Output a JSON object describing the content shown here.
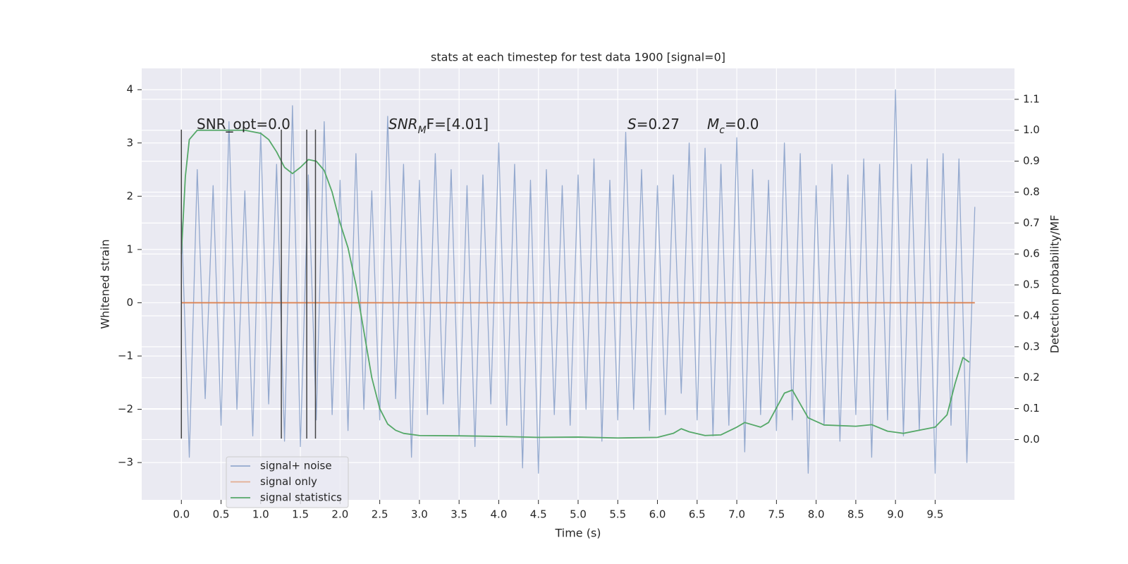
{
  "chart_data": {
    "type": "line",
    "title": "stats at each timestep for test data 1900 [signal=0]",
    "xlabel": "Time (s)",
    "ylabel": "Whitened strain",
    "y2label": "Detection probability/MF",
    "xlim": [
      -0.5,
      10.5
    ],
    "ylim": [
      -3.7,
      4.4
    ],
    "y2lim": [
      -0.195,
      1.2
    ],
    "xticks": [
      {
        "value": 0,
        "label": "0.0"
      },
      {
        "value": 0.5,
        "label": "0.5"
      },
      {
        "value": 1,
        "label": "1.0"
      },
      {
        "value": 1.5,
        "label": "1.5"
      },
      {
        "value": 2,
        "label": "2.0"
      },
      {
        "value": 2.5,
        "label": "2.5"
      },
      {
        "value": 3,
        "label": "3.0"
      },
      {
        "value": 3.5,
        "label": "3.5"
      },
      {
        "value": 4,
        "label": "4.0"
      },
      {
        "value": 4.5,
        "label": "4.5"
      },
      {
        "value": 5,
        "label": "5.0"
      },
      {
        "value": 5.5,
        "label": "5.5"
      },
      {
        "value": 6,
        "label": "6.0"
      },
      {
        "value": 6.5,
        "label": "6.5"
      },
      {
        "value": 7,
        "label": "7.0"
      },
      {
        "value": 7.5,
        "label": "7.5"
      },
      {
        "value": 8,
        "label": "8.0"
      },
      {
        "value": 8.5,
        "label": "8.5"
      },
      {
        "value": 9,
        "label": "9.0"
      },
      {
        "value": 9.5,
        "label": "9.5"
      }
    ],
    "yticks": [
      {
        "value": -3,
        "label": "−3"
      },
      {
        "value": -2,
        "label": "−2"
      },
      {
        "value": -1,
        "label": "−1"
      },
      0,
      1,
      2,
      3,
      4
    ],
    "y2ticks": [
      {
        "value": 0,
        "label": "0.0"
      },
      0.1,
      0.2,
      0.3,
      0.4,
      0.5,
      0.6,
      0.7,
      0.8,
      0.9,
      {
        "value": 1,
        "label": "1.0"
      },
      1.1
    ],
    "grid": true,
    "legend": "lower left",
    "series": [
      {
        "name": "signal+ noise",
        "color": "#4c72b0",
        "x": [
          0.0,
          0.1,
          0.2,
          0.3,
          0.4,
          0.5,
          0.6,
          0.7,
          0.8,
          0.9,
          1.0,
          1.1,
          1.2,
          1.3,
          1.4,
          1.5,
          1.6,
          1.7,
          1.8,
          1.9,
          2.0,
          2.1,
          2.2,
          2.3,
          2.4,
          2.5,
          2.6,
          2.7,
          2.8,
          2.9,
          3.0,
          3.1,
          3.2,
          3.3,
          3.4,
          3.5,
          3.6,
          3.7,
          3.8,
          3.9,
          4.0,
          4.1,
          4.2,
          4.3,
          4.4,
          4.5,
          4.6,
          4.7,
          4.8,
          4.9,
          5.0,
          5.1,
          5.2,
          5.3,
          5.4,
          5.5,
          5.6,
          5.7,
          5.8,
          5.9,
          6.0,
          6.1,
          6.2,
          6.3,
          6.4,
          6.5,
          6.6,
          6.7,
          6.8,
          6.9,
          7.0,
          7.1,
          7.2,
          7.3,
          7.4,
          7.5,
          7.6,
          7.7,
          7.8,
          7.9,
          8.0,
          8.1,
          8.2,
          8.3,
          8.4,
          8.5,
          8.6,
          8.7,
          8.8,
          8.9,
          9.0,
          9.1,
          9.2,
          9.3,
          9.4,
          9.5,
          9.6,
          9.7,
          9.8,
          9.9,
          10.0
        ],
        "values": [
          1.6,
          -2.9,
          2.5,
          -1.8,
          2.2,
          -2.3,
          3.4,
          -2.0,
          2.1,
          -2.5,
          3.2,
          -1.9,
          2.6,
          -2.6,
          3.7,
          -2.7,
          2.4,
          -2.2,
          3.4,
          -2.1,
          2.3,
          -2.4,
          2.8,
          -2.0,
          2.1,
          -2.2,
          3.5,
          -1.8,
          2.6,
          -2.9,
          2.3,
          -2.1,
          2.8,
          -1.9,
          2.5,
          -2.5,
          2.2,
          -2.7,
          2.4,
          -1.9,
          3.0,
          -2.3,
          2.6,
          -3.1,
          2.3,
          -3.2,
          2.5,
          -2.1,
          2.2,
          -2.3,
          2.4,
          -2.0,
          2.7,
          -2.6,
          2.3,
          -2.2,
          3.2,
          -2.0,
          2.5,
          -2.4,
          2.2,
          -2.1,
          2.4,
          -1.7,
          3.0,
          -2.2,
          2.9,
          -2.5,
          2.6,
          -2.3,
          3.1,
          -2.8,
          2.5,
          -2.1,
          2.3,
          -2.4,
          3.0,
          -2.2,
          2.8,
          -3.2,
          2.2,
          -2.3,
          2.6,
          -2.6,
          2.4,
          -2.1,
          2.7,
          -2.9,
          2.6,
          -2.2,
          4.0,
          -2.5,
          2.6,
          -2.4,
          2.7,
          -3.2,
          2.8,
          -2.3,
          2.7,
          -3.0,
          1.8
        ]
      },
      {
        "name": "signal only",
        "color": "#dd8452",
        "x": [
          0.0,
          10.0
        ],
        "values": [
          0,
          0
        ]
      },
      {
        "name": "signal statistics",
        "color": "#55a868",
        "axis": "y2",
        "x": [
          0.0,
          0.05,
          0.1,
          0.2,
          0.4,
          0.8,
          1.0,
          1.1,
          1.2,
          1.3,
          1.4,
          1.5,
          1.6,
          1.7,
          1.8,
          1.9,
          2.0,
          2.1,
          2.2,
          2.3,
          2.4,
          2.5,
          2.6,
          2.7,
          2.8,
          3.0,
          3.5,
          4.0,
          4.5,
          5.0,
          5.5,
          6.0,
          6.2,
          6.3,
          6.4,
          6.6,
          6.8,
          7.0,
          7.1,
          7.3,
          7.4,
          7.6,
          7.7,
          7.9,
          8.1,
          8.5,
          8.7,
          8.9,
          9.1,
          9.3,
          9.5,
          9.65,
          9.75,
          9.85,
          9.93
        ],
        "values": [
          0.6,
          0.85,
          0.97,
          1.0,
          1.0,
          1.0,
          0.99,
          0.97,
          0.93,
          0.88,
          0.86,
          0.88,
          0.905,
          0.9,
          0.87,
          0.8,
          0.7,
          0.62,
          0.5,
          0.35,
          0.2,
          0.1,
          0.05,
          0.03,
          0.02,
          0.013,
          0.012,
          0.01,
          0.007,
          0.008,
          0.005,
          0.007,
          0.02,
          0.035,
          0.025,
          0.013,
          0.015,
          0.04,
          0.055,
          0.04,
          0.055,
          0.15,
          0.16,
          0.07,
          0.047,
          0.043,
          0.048,
          0.027,
          0.02,
          0.03,
          0.04,
          0.08,
          0.18,
          0.265,
          0.25
        ]
      }
    ],
    "vlines": {
      "color": "#444444",
      "x": [
        0.0,
        1.26,
        1.58,
        1.69
      ],
      "ymin": -2.55,
      "ymax": 3.25
    },
    "annotations": [
      {
        "parts": [
          {
            "text": "SNR_opt=0.0"
          }
        ]
      },
      {
        "parts": [
          {
            "text": "SNR",
            "style": "italic"
          },
          {
            "text": "M",
            "style": "sub"
          },
          {
            "text": "F=[4.01]"
          }
        ]
      },
      {
        "parts": [
          {
            "text": "S",
            "style": "italic"
          },
          {
            "text": "=0.27"
          }
        ]
      },
      {
        "parts": [
          {
            "text": "M",
            "style": "italic"
          },
          {
            "text": "c",
            "style": "sub"
          },
          {
            "text": "=0.0"
          }
        ]
      }
    ]
  }
}
